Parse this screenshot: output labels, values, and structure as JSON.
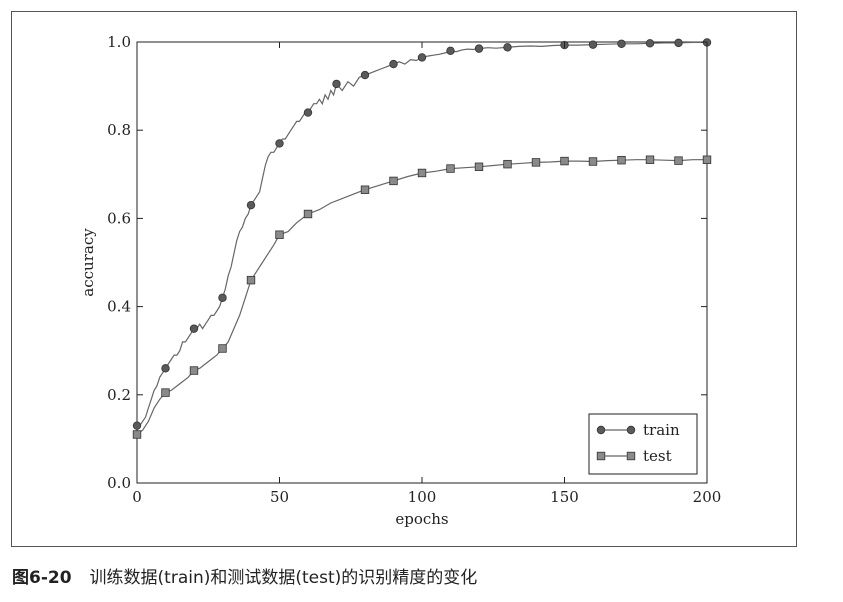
{
  "caption": {
    "number": "图6-20",
    "text": "训练数据(train)和测试数据(test)的识别精度的变化"
  },
  "chart_data": {
    "type": "line",
    "xlabel": "epochs",
    "ylabel": "accuracy",
    "xlim": [
      0,
      200
    ],
    "ylim": [
      0.0,
      1.0
    ],
    "xticks": [
      0,
      50,
      100,
      150,
      200
    ],
    "xtick_labels": [
      "0",
      "50",
      "100",
      "150",
      "200"
    ],
    "yticks": [
      0.0,
      0.2,
      0.4,
      0.6,
      0.8,
      1.0
    ],
    "ytick_labels": [
      "0.0",
      "0.2",
      "0.4",
      "0.6",
      "0.8",
      "1.0"
    ],
    "grid": false,
    "legend_position": "bottom-right",
    "series": [
      {
        "name": "train",
        "marker": "circle",
        "color": "#666666",
        "x": [
          0,
          1,
          2,
          3,
          4,
          5,
          6,
          7,
          8,
          9,
          10,
          11,
          12,
          13,
          14,
          15,
          16,
          17,
          18,
          19,
          20,
          21,
          22,
          23,
          24,
          25,
          26,
          27,
          28,
          29,
          30,
          31,
          32,
          33,
          34,
          35,
          36,
          37,
          38,
          39,
          40,
          41,
          42,
          43,
          44,
          45,
          46,
          47,
          48,
          49,
          50,
          51,
          52,
          53,
          54,
          55,
          56,
          57,
          58,
          59,
          60,
          61,
          62,
          63,
          64,
          65,
          66,
          67,
          68,
          69,
          70,
          72,
          74,
          76,
          78,
          80,
          82,
          84,
          86,
          88,
          90,
          92,
          94,
          96,
          98,
          100,
          102,
          104,
          106,
          108,
          110,
          112,
          114,
          116,
          118,
          120,
          123,
          126,
          130,
          134,
          138,
          142,
          146,
          150,
          155,
          160,
          165,
          170,
          175,
          180,
          185,
          190,
          195,
          200
        ],
        "y": [
          0.13,
          0.13,
          0.14,
          0.15,
          0.17,
          0.19,
          0.21,
          0.22,
          0.24,
          0.25,
          0.26,
          0.27,
          0.28,
          0.29,
          0.29,
          0.3,
          0.32,
          0.32,
          0.33,
          0.34,
          0.35,
          0.35,
          0.36,
          0.35,
          0.36,
          0.37,
          0.38,
          0.38,
          0.39,
          0.4,
          0.42,
          0.44,
          0.47,
          0.49,
          0.52,
          0.55,
          0.57,
          0.58,
          0.6,
          0.61,
          0.63,
          0.64,
          0.65,
          0.66,
          0.69,
          0.72,
          0.74,
          0.75,
          0.75,
          0.76,
          0.77,
          0.78,
          0.78,
          0.79,
          0.8,
          0.81,
          0.82,
          0.82,
          0.83,
          0.84,
          0.84,
          0.85,
          0.86,
          0.86,
          0.87,
          0.86,
          0.88,
          0.87,
          0.89,
          0.88,
          0.905,
          0.89,
          0.91,
          0.9,
          0.92,
          0.925,
          0.93,
          0.935,
          0.94,
          0.945,
          0.95,
          0.955,
          0.95,
          0.96,
          0.958,
          0.965,
          0.968,
          0.97,
          0.972,
          0.975,
          0.98,
          0.978,
          0.982,
          0.984,
          0.983,
          0.985,
          0.987,
          0.986,
          0.988,
          0.99,
          0.991,
          0.99,
          0.992,
          0.993,
          0.993,
          0.994,
          0.995,
          0.996,
          0.996,
          0.997,
          0.998,
          0.998,
          0.999,
          0.999
        ]
      },
      {
        "name": "test",
        "marker": "square",
        "color": "#666666",
        "x": [
          0,
          2,
          4,
          6,
          8,
          10,
          12,
          14,
          16,
          18,
          20,
          22,
          24,
          26,
          28,
          30,
          32,
          34,
          36,
          38,
          40,
          42,
          44,
          46,
          48,
          50,
          53,
          56,
          60,
          64,
          68,
          72,
          76,
          80,
          85,
          90,
          95,
          100,
          105,
          110,
          115,
          120,
          125,
          130,
          135,
          140,
          145,
          150,
          155,
          160,
          165,
          170,
          175,
          180,
          185,
          190,
          195,
          200
        ],
        "y": [
          0.11,
          0.12,
          0.14,
          0.17,
          0.19,
          0.205,
          0.21,
          0.22,
          0.23,
          0.24,
          0.255,
          0.26,
          0.27,
          0.28,
          0.29,
          0.305,
          0.32,
          0.35,
          0.38,
          0.42,
          0.46,
          0.48,
          0.5,
          0.52,
          0.54,
          0.563,
          0.57,
          0.59,
          0.61,
          0.62,
          0.635,
          0.645,
          0.655,
          0.665,
          0.675,
          0.685,
          0.695,
          0.703,
          0.707,
          0.713,
          0.715,
          0.717,
          0.72,
          0.723,
          0.725,
          0.727,
          0.728,
          0.73,
          0.73,
          0.729,
          0.731,
          0.732,
          0.733,
          0.733,
          0.732,
          0.731,
          0.733,
          0.733
        ]
      }
    ]
  }
}
